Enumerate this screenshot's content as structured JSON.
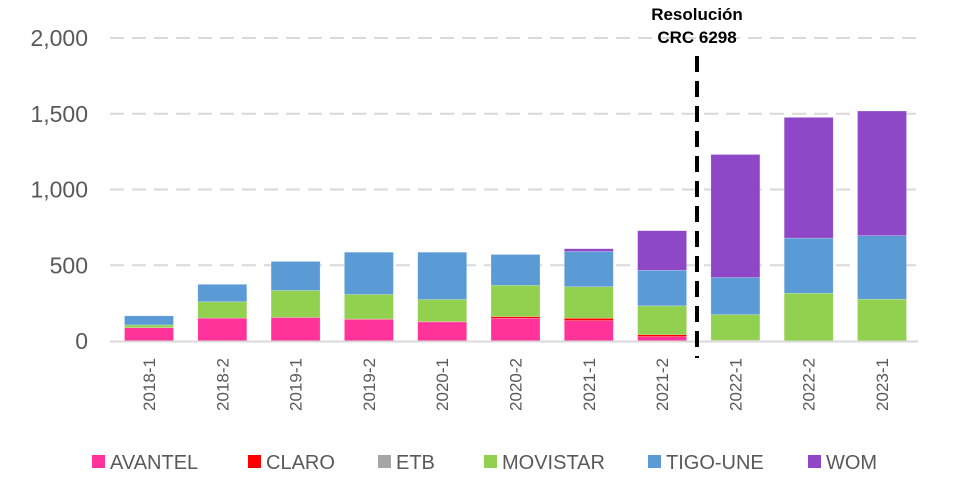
{
  "chart_data": {
    "type": "bar",
    "stacked": true,
    "title": "",
    "xlabel": "",
    "ylabel": "",
    "ylim": [
      0,
      2000
    ],
    "yticks": [
      0,
      500,
      1000,
      1500,
      2000
    ],
    "ytick_labels": [
      "0",
      "500",
      "1,000",
      "1,500",
      "2,000"
    ],
    "grid": "horizontal-dashed",
    "legend_position": "bottom",
    "categories": [
      "2018-1",
      "2018-2",
      "2019-1",
      "2019-2",
      "2020-1",
      "2020-2",
      "2021-1",
      "2021-2",
      "2022-1",
      "2022-2",
      "2023-1"
    ],
    "series": [
      {
        "name": "AVANTEL",
        "color": "#FF3399",
        "values": [
          88,
          151,
          155,
          142,
          126,
          150,
          135,
          29,
          4,
          0,
          0
        ]
      },
      {
        "name": "CLARO",
        "color": "#FF0000",
        "values": [
          0,
          0,
          0,
          3,
          2,
          11,
          15,
          13,
          1,
          0,
          0
        ]
      },
      {
        "name": "ETB",
        "color": "#A6A6A6",
        "values": [
          0,
          0,
          0,
          0,
          0,
          0,
          0,
          0,
          0,
          0,
          0
        ]
      },
      {
        "name": "MOVISTAR",
        "color": "#92D050",
        "values": [
          18,
          108,
          179,
          162,
          146,
          206,
          208,
          190,
          169,
          315,
          276
        ]
      },
      {
        "name": "TIGO-UNE",
        "color": "#5B9BD5",
        "values": [
          60,
          115,
          191,
          279,
          312,
          204,
          233,
          235,
          245,
          364,
          419
        ]
      },
      {
        "name": "WOM",
        "color": "#8E47C6",
        "values": [
          0,
          0,
          0,
          0,
          0,
          0,
          18,
          261,
          812,
          797,
          823
        ]
      }
    ],
    "annotations": [
      {
        "type": "vertical-dashed-line",
        "between": [
          "2021-2",
          "2022-1"
        ],
        "label_lines": [
          "Resolución",
          "CRC 6298"
        ]
      }
    ]
  }
}
